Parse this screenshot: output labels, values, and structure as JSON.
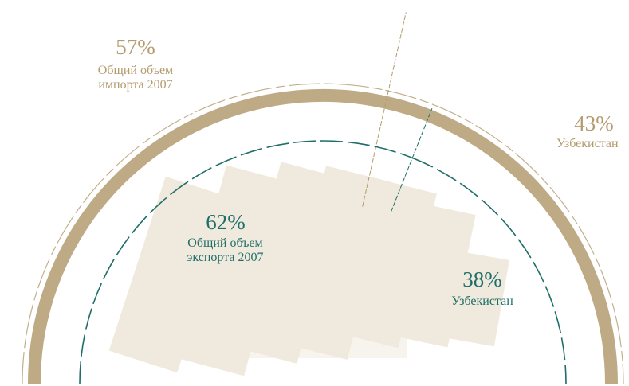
{
  "chart_data": [
    {
      "type": "pie",
      "categories": [
        "Общий объем импорта 2007",
        "Узбекистан"
      ],
      "values": [
        57,
        43
      ],
      "value_labels": [
        "57%",
        "43%"
      ],
      "color": "#b39b6e"
    },
    {
      "type": "pie",
      "categories": [
        "Общий объем экспорта 2007",
        "Узбекистан"
      ],
      "values": [
        62,
        38
      ],
      "value_labels": [
        "62%",
        "38%"
      ],
      "color": "#1f6e68"
    }
  ]
}
